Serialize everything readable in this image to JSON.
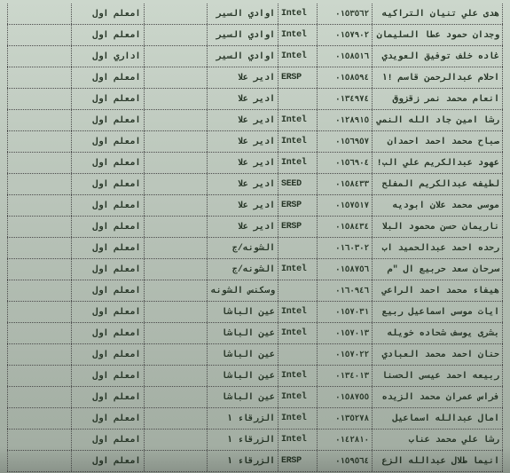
{
  "table": {
    "rows": [
      {
        "name": "هدى علي تنيان التراكيه",
        "num": "٠١٥٣٥٦٢",
        "type": "Intel",
        "loc": "اوادي السير",
        "job": "امعلم اول"
      },
      {
        "name": "وجدان حمود عطا السليمان",
        "num": "٠١٥٧٩٠٢",
        "type": "Intel",
        "loc": "اوادي السير",
        "job": "امعلم اول"
      },
      {
        "name": "غاده خلف توفيق العويدي",
        "num": "٠١٥٨٥١٦",
        "type": "Intel",
        "loc": "اوادي السير",
        "job": "اداري اول"
      },
      {
        "name": "احلام عبدالرحمن قاسم !١",
        "num": "٠١٥٨٥٩٤",
        "type": "ERSP",
        "loc": "ادير علا",
        "job": "امعلم اول"
      },
      {
        "name": "انعام محمد نمر زقزوق",
        "num": "٠١٣٤٩٧٤",
        "type": "",
        "loc": "ادير علا",
        "job": "امعلم اول"
      },
      {
        "name": "رشا امين جاد الله النمي",
        "num": "٠١٢٨٩١٥",
        "type": "Intel",
        "loc": "ادير علا",
        "job": "امعلم اول"
      },
      {
        "name": "صباح محمد احمد احمدان",
        "num": "٠١٥٦٩٥٧",
        "type": "Intel",
        "loc": "ادير علا",
        "job": "امعلم اول"
      },
      {
        "name": "عهود عبدالكريم علي الب!",
        "num": "٠١٥٦٩٠٤",
        "type": "Intel",
        "loc": "ادير علا",
        "job": "امعلم اول"
      },
      {
        "name": "لطيفه عبدالكريم المفلح",
        "num": "٠١٥٨٤٣٣",
        "type": "SEED",
        "loc": "ادير علا",
        "job": "امعلم اول"
      },
      {
        "name": "موسى محمد علان ابوديه",
        "num": "٠١٥٧٥١٧",
        "type": "ERSP",
        "loc": "ادير علا",
        "job": "امعلم اول"
      },
      {
        "name": "ناريمان حسن محمود البلا",
        "num": "٠١٥٨٤٣٤",
        "type": "ERSP",
        "loc": "ادير علا",
        "job": "امعلم اول"
      },
      {
        "name": "رحده احمد عبدالحميد اب",
        "num": "٠١٦٠٣٠٢",
        "type": "",
        "loc": "الشونه/ج",
        "job": "امعلم اول"
      },
      {
        "name": "سرحان سعد حربيع ال \"م",
        "num": "٠١٥٨٧٥٦",
        "type": "Intel",
        "loc": "الشونه/ج",
        "job": "امعلم اول"
      },
      {
        "name": "هيفاء محمد احمد الراعي",
        "num": "٠١٦٠٩٤٦",
        "type": "",
        "loc": "وسكنس الشونه",
        "job": "امعلم اول"
      },
      {
        "name": "ايات موسى اسماعيل ربيع",
        "num": "٠١٥٧٠٣١",
        "type": "Intel",
        "loc": "عين الباشا",
        "job": "امعلم اول"
      },
      {
        "name": "بشرى يوسف شحاده خويله",
        "num": "٠١٥٧٠١٣",
        "type": "Intel",
        "loc": "عين الباشا",
        "job": "امعلم اول"
      },
      {
        "name": "حنان احمد محمد العبادي",
        "num": "٠١٥٧٠٢٢",
        "type": "",
        "loc": "عين الباشا",
        "job": "امعلم اول"
      },
      {
        "name": "ربيعه احمد عيسى الحسنا",
        "num": "٠١٣٤٠١٣",
        "type": "Intel",
        "loc": "عين الباشا",
        "job": "امعلم اول"
      },
      {
        "name": "فراس عمران محمد الزيده",
        "num": "٠١٥٨٧٥٥",
        "type": "Intel",
        "loc": "عين الباشا",
        "job": "امعلم اول"
      },
      {
        "name": "امال عبدالله اسماعيل",
        "num": "٠١٣٥٢٧٨",
        "type": "Intel",
        "loc": "الزرقاء ١",
        "job": "امعلم اول"
      },
      {
        "name": "رشا علي محمد عناب",
        "num": "٠١٤٢٨١٠",
        "type": "Intel",
        "loc": "الزرقاء ١",
        "job": "امعلم اول"
      },
      {
        "name": "انيما طلال عبدالله الزع",
        "num": "٠١٥٩٥٦٤",
        "type": "ERSP",
        "loc": "الزرقاء ١",
        "job": "امعلم اول"
      }
    ]
  }
}
